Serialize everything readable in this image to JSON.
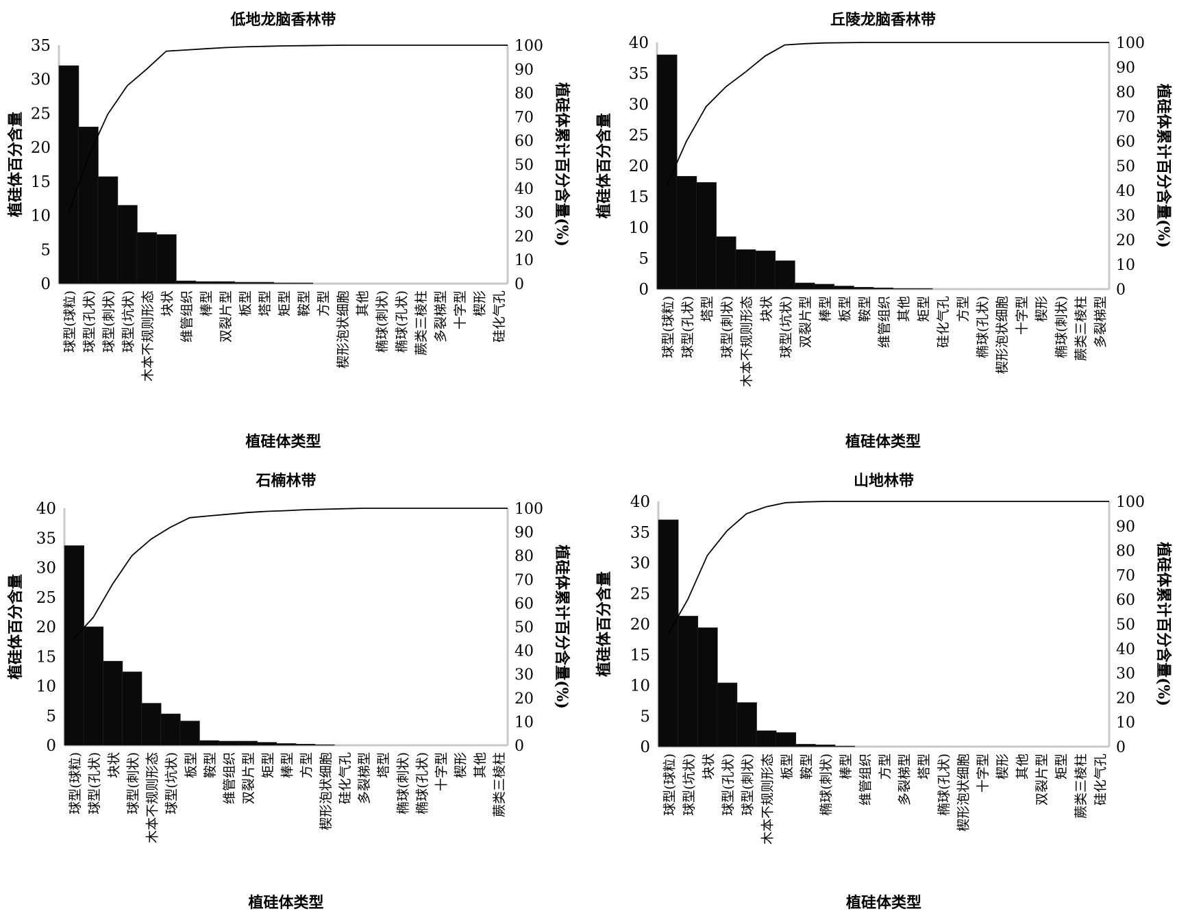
{
  "chart_data": [
    {
      "type": "bar",
      "title": "低地龙脑香林带",
      "xlabel": "植硅体类型",
      "ylabel": "植硅体百分含量",
      "y2label": "植硅体累计百分含量(%)",
      "ylim": [
        0,
        35
      ],
      "yticks": [
        0,
        5,
        10,
        15,
        20,
        25,
        30,
        35
      ],
      "y2lim": [
        0,
        100
      ],
      "y2ticks": [
        0,
        10,
        20,
        30,
        40,
        50,
        60,
        70,
        80,
        90,
        100
      ],
      "categories": [
        "球型(球粒)",
        "球型(孔状)",
        "球型(刺状)",
        "球型(坑状)",
        "木本不规则形态",
        "块状",
        "维管组织",
        "棒型",
        "双裂片型",
        "板型",
        "塔型",
        "矩型",
        "鞍型",
        "方型",
        "楔形泡状细胞",
        "其他",
        "椭球(刺状)",
        "椭球(孔状)",
        "蕨类三棱柱",
        "多裂梯型",
        "十字型",
        "楔形",
        "硅化气孔"
      ],
      "values": [
        32,
        23,
        15.7,
        11.5,
        7.5,
        7.2,
        0.4,
        0.3,
        0.3,
        0.2,
        0.2,
        0.1,
        0.1,
        0,
        0,
        0,
        0,
        0,
        0,
        0,
        0,
        0,
        0
      ],
      "series": [
        {
          "name": "植硅体百分含量",
          "type": "bar"
        },
        {
          "name": "植硅体累计百分含量",
          "type": "line",
          "axis": "right",
          "values": [
            30,
            53,
            71,
            83,
            90,
            97.5,
            98,
            98.5,
            99,
            99.3,
            99.5,
            99.7,
            99.8,
            99.9,
            100,
            100,
            100,
            100,
            100,
            100,
            100,
            100,
            100
          ]
        }
      ]
    },
    {
      "type": "bar",
      "title": "丘陵龙脑香林带",
      "xlabel": "植硅体类型",
      "ylabel": "植硅体百分含量",
      "y2label": "植硅体累计百分含量(%)",
      "ylim": [
        0,
        40
      ],
      "yticks": [
        0,
        5,
        10,
        15,
        20,
        25,
        30,
        35,
        40
      ],
      "y2lim": [
        0,
        100
      ],
      "y2ticks": [
        0,
        10,
        20,
        30,
        40,
        50,
        60,
        70,
        80,
        90,
        100
      ],
      "categories": [
        "球型(球粒)",
        "球型(孔状)",
        "塔型",
        "球型(刺状)",
        "木本不规则形态",
        "块状",
        "球型(坑状)",
        "双裂片型",
        "棒型",
        "板型",
        "鞍型",
        "维管组织",
        "其他",
        "矩型",
        "硅化气孔",
        "方型",
        "椭球(孔状)",
        "楔形泡状细胞",
        "十字型",
        "楔形",
        "椭球(刺状)",
        "蕨类三棱柱",
        "多裂梯型"
      ],
      "values": [
        38,
        18.3,
        17.3,
        8.5,
        6.4,
        6.2,
        4.6,
        1.0,
        0.8,
        0.5,
        0.3,
        0.2,
        0.1,
        0.1,
        0,
        0,
        0,
        0,
        0,
        0,
        0,
        0,
        0
      ],
      "series": [
        {
          "name": "植硅体百分含量",
          "type": "bar"
        },
        {
          "name": "植硅体累计百分含量",
          "type": "line",
          "axis": "right",
          "values": [
            42,
            60,
            74,
            82,
            88,
            94.5,
            99,
            99.5,
            99.8,
            99.9,
            100,
            100,
            100,
            100,
            100,
            100,
            100,
            100,
            100,
            100,
            100,
            100,
            100
          ]
        }
      ]
    },
    {
      "type": "bar",
      "title": "石楠林带",
      "xlabel": "植硅体类型",
      "ylabel": "植硅体百分含量",
      "y2label": "植硅体累计百分含量(%)",
      "ylim": [
        0,
        40
      ],
      "yticks": [
        0,
        5,
        10,
        15,
        20,
        25,
        30,
        35,
        40
      ],
      "y2lim": [
        0,
        100
      ],
      "y2ticks": [
        0,
        10,
        20,
        30,
        40,
        50,
        60,
        70,
        80,
        90,
        100
      ],
      "categories": [
        "球型(球粒)",
        "球型(孔状)",
        "块状",
        "球型(刺状)",
        "木本不规则形态",
        "球型(坑状)",
        "板型",
        "鞍型",
        "维管组织",
        "双裂片型",
        "矩型",
        "棒型",
        "方型",
        "楔形泡状细胞",
        "硅化气孔",
        "多裂梯型",
        "塔型",
        "椭球(刺状)",
        "椭球(孔状)",
        "十字型",
        "楔形",
        "其他",
        "蕨类三棱柱"
      ],
      "values": [
        33.7,
        20,
        14.2,
        12.4,
        7.1,
        5.3,
        4.1,
        0.8,
        0.7,
        0.7,
        0.5,
        0.3,
        0.2,
        0.1,
        0,
        0,
        0,
        0,
        0,
        0,
        0,
        0,
        0
      ],
      "series": [
        {
          "name": "植硅体百分含量",
          "type": "bar"
        },
        {
          "name": "植硅体累计百分含量",
          "type": "line",
          "axis": "right",
          "values": [
            45,
            54,
            68,
            80,
            87,
            92,
            96,
            96.8,
            97.5,
            98.2,
            98.7,
            99,
            99.4,
            99.6,
            99.8,
            100,
            100,
            100,
            100,
            100,
            100,
            100,
            100
          ]
        }
      ]
    },
    {
      "type": "bar",
      "title": "山地林带",
      "xlabel": "植硅体类型",
      "ylabel": "植硅体百分含量",
      "y2label": "植硅体累计百分含量(%)",
      "ylim": [
        0,
        40
      ],
      "yticks": [
        0,
        5,
        10,
        15,
        20,
        25,
        30,
        35,
        40
      ],
      "y2lim": [
        0,
        100
      ],
      "y2ticks": [
        0,
        10,
        20,
        30,
        40,
        50,
        60,
        70,
        80,
        90,
        100
      ],
      "categories": [
        "球型(球粒)",
        "球型(坑状)",
        "块状",
        "球型(孔状)",
        "球型(刺状)",
        "木本不规则形态",
        "板型",
        "鞍型",
        "椭球(刺状)",
        "棒型",
        "维管组织",
        "方型",
        "多裂梯型",
        "塔型",
        "椭球(孔状)",
        "楔形泡状细胞",
        "十字型",
        "楔形",
        "其他",
        "双裂片型",
        "矩型",
        "蕨类三棱柱",
        "硅化气孔"
      ],
      "values": [
        37,
        21.3,
        19.4,
        10.4,
        7.2,
        2.6,
        2.3,
        0.4,
        0.3,
        0.1,
        0,
        0,
        0,
        0,
        0,
        0,
        0,
        0,
        0,
        0,
        0,
        0,
        0
      ],
      "series": [
        {
          "name": "植硅体百分含量",
          "type": "bar"
        },
        {
          "name": "植硅体累计百分含量",
          "type": "line",
          "axis": "right",
          "values": [
            46,
            60,
            78,
            88,
            95,
            97.8,
            99.5,
            99.8,
            100,
            100,
            100,
            100,
            100,
            100,
            100,
            100,
            100,
            100,
            100,
            100,
            100,
            100,
            100
          ]
        }
      ]
    }
  ]
}
